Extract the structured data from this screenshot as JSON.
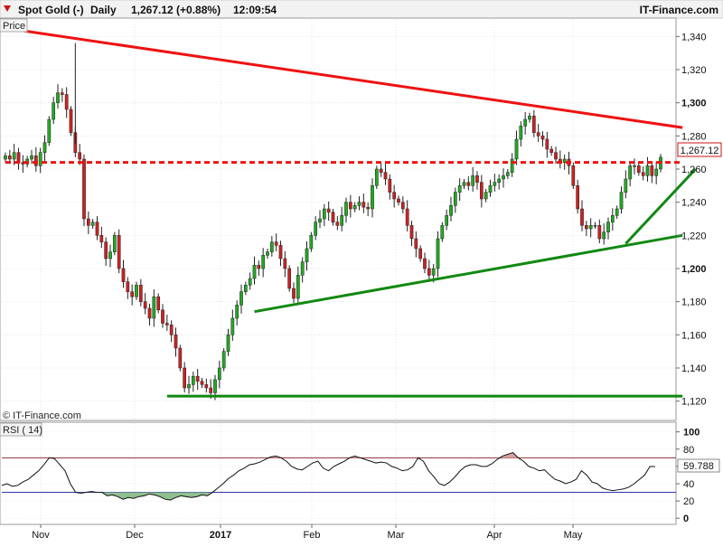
{
  "header": {
    "instrument": "Spot Gold (-)",
    "period": "Daily",
    "last": "1,267.12 (+0.88%)",
    "time": "12:09:54",
    "brand": "IT-Finance.com"
  },
  "price_panel": {
    "label": "Price",
    "copyright": "© IT-Finance.com",
    "last_value_label": "1,267.12"
  },
  "rsi_panel": {
    "label": "RSI ( 14)",
    "last_value_label": "59.788"
  },
  "chart_data": [
    {
      "type": "candlestick",
      "title": "Spot Gold (-)",
      "x_ticks": [
        "Nov",
        "Dec",
        "2017",
        "Feb",
        "Mar",
        "Apr",
        "May"
      ],
      "ylim": [
        1110,
        1350
      ],
      "y_ticks": [
        1340,
        1320,
        1300,
        1280,
        1260,
        1240,
        1220,
        1200,
        1180,
        1160,
        1140,
        1120
      ],
      "y_tick_labels": [
        "1,340",
        "1,320",
        "1,300",
        "1,280",
        "1,260",
        "1,240",
        "1,220",
        "1,200",
        "1,180",
        "1,160",
        "1,140",
        "1,120"
      ],
      "grid": true,
      "up_color": "#22aa22",
      "down_color": "#cc2222",
      "close": [
        1268,
        1266,
        1270,
        1264,
        1263,
        1266,
        1268,
        1262,
        1270,
        1276,
        1290,
        1300,
        1306,
        1305,
        1296,
        1282,
        1270,
        1266,
        1230,
        1226,
        1228,
        1220,
        1216,
        1206,
        1210,
        1220,
        1200,
        1192,
        1186,
        1183,
        1190,
        1180,
        1176,
        1170,
        1183,
        1175,
        1167,
        1166,
        1160,
        1152,
        1140,
        1128,
        1130,
        1135,
        1132,
        1130,
        1128,
        1125,
        1133,
        1140,
        1150,
        1160,
        1170,
        1178,
        1186,
        1190,
        1194,
        1202,
        1200,
        1208,
        1210,
        1216,
        1214,
        1206,
        1200,
        1188,
        1182,
        1196,
        1204,
        1212,
        1220,
        1228,
        1230,
        1236,
        1234,
        1228,
        1226,
        1232,
        1240,
        1236,
        1238,
        1240,
        1237,
        1236,
        1250,
        1260,
        1258,
        1254,
        1246,
        1242,
        1240,
        1236,
        1226,
        1218,
        1212,
        1206,
        1200,
        1196,
        1200,
        1218,
        1226,
        1232,
        1238,
        1246,
        1250,
        1252,
        1250,
        1256,
        1252,
        1242,
        1246,
        1250,
        1252,
        1254,
        1256,
        1258,
        1266,
        1278,
        1286,
        1290,
        1292,
        1282,
        1280,
        1278,
        1272,
        1270,
        1266,
        1264,
        1266,
        1262,
        1250,
        1236,
        1226,
        1224,
        1226,
        1226,
        1218,
        1222,
        1228,
        1232,
        1236,
        1246,
        1254,
        1262,
        1262,
        1258,
        1256,
        1262,
        1256,
        1260,
        1267.12
      ],
      "trendlines": [
        {
          "color": "#ee1111",
          "from": [
            0,
            1345
          ],
          "to": [
            155,
            1285
          ]
        },
        {
          "color": "#ee1111",
          "dashed": true,
          "from": [
            0,
            1264
          ],
          "to": [
            155,
            1264
          ]
        },
        {
          "color": "#118811",
          "from": [
            57,
            1174
          ],
          "to": [
            155,
            1220
          ]
        },
        {
          "color": "#118811",
          "from": [
            142,
            1215
          ],
          "to": [
            158,
            1260
          ]
        },
        {
          "color": "#118811",
          "from": [
            37,
            1123
          ],
          "to": [
            155,
            1123
          ]
        }
      ]
    },
    {
      "type": "line",
      "title": "RSI ( 14)",
      "ylim": [
        -5,
        108
      ],
      "y_ticks": [
        100,
        80,
        60,
        40,
        20,
        0
      ],
      "y_tick_labels": [
        "100",
        "80",
        "60",
        "40",
        "20",
        "0"
      ],
      "reference_lines": [
        70,
        30
      ],
      "upper_line_color": "#883333",
      "lower_line_color": "#3333aa",
      "values": [
        38,
        40,
        37,
        38,
        42,
        45,
        50,
        55,
        62,
        70,
        69,
        62,
        55,
        40,
        30,
        29,
        30,
        31,
        30,
        30,
        26,
        27,
        25,
        22,
        24,
        23,
        25,
        26,
        28,
        27,
        25,
        22,
        21,
        24,
        26,
        25,
        24,
        25,
        27,
        26,
        30,
        35,
        40,
        46,
        50,
        55,
        58,
        62,
        63,
        65,
        68,
        71,
        72,
        70,
        66,
        60,
        57,
        56,
        60,
        64,
        66,
        58,
        55,
        60,
        63,
        66,
        70,
        72,
        70,
        68,
        66,
        64,
        65,
        64,
        60,
        58,
        55,
        56,
        60,
        70,
        66,
        55,
        48,
        40,
        38,
        42,
        48,
        55,
        60,
        62,
        62,
        60,
        60,
        63,
        68,
        72,
        74,
        76,
        70,
        66,
        60,
        58,
        55,
        56,
        50,
        45,
        43,
        40,
        42,
        45,
        55,
        50,
        42,
        40,
        35,
        33,
        32,
        33,
        34,
        36,
        40,
        45,
        50,
        60,
        59.788
      ],
      "x_ticks": [
        "Nov",
        "Dec",
        "2017",
        "Feb",
        "Mar",
        "Apr",
        "May"
      ]
    }
  ]
}
